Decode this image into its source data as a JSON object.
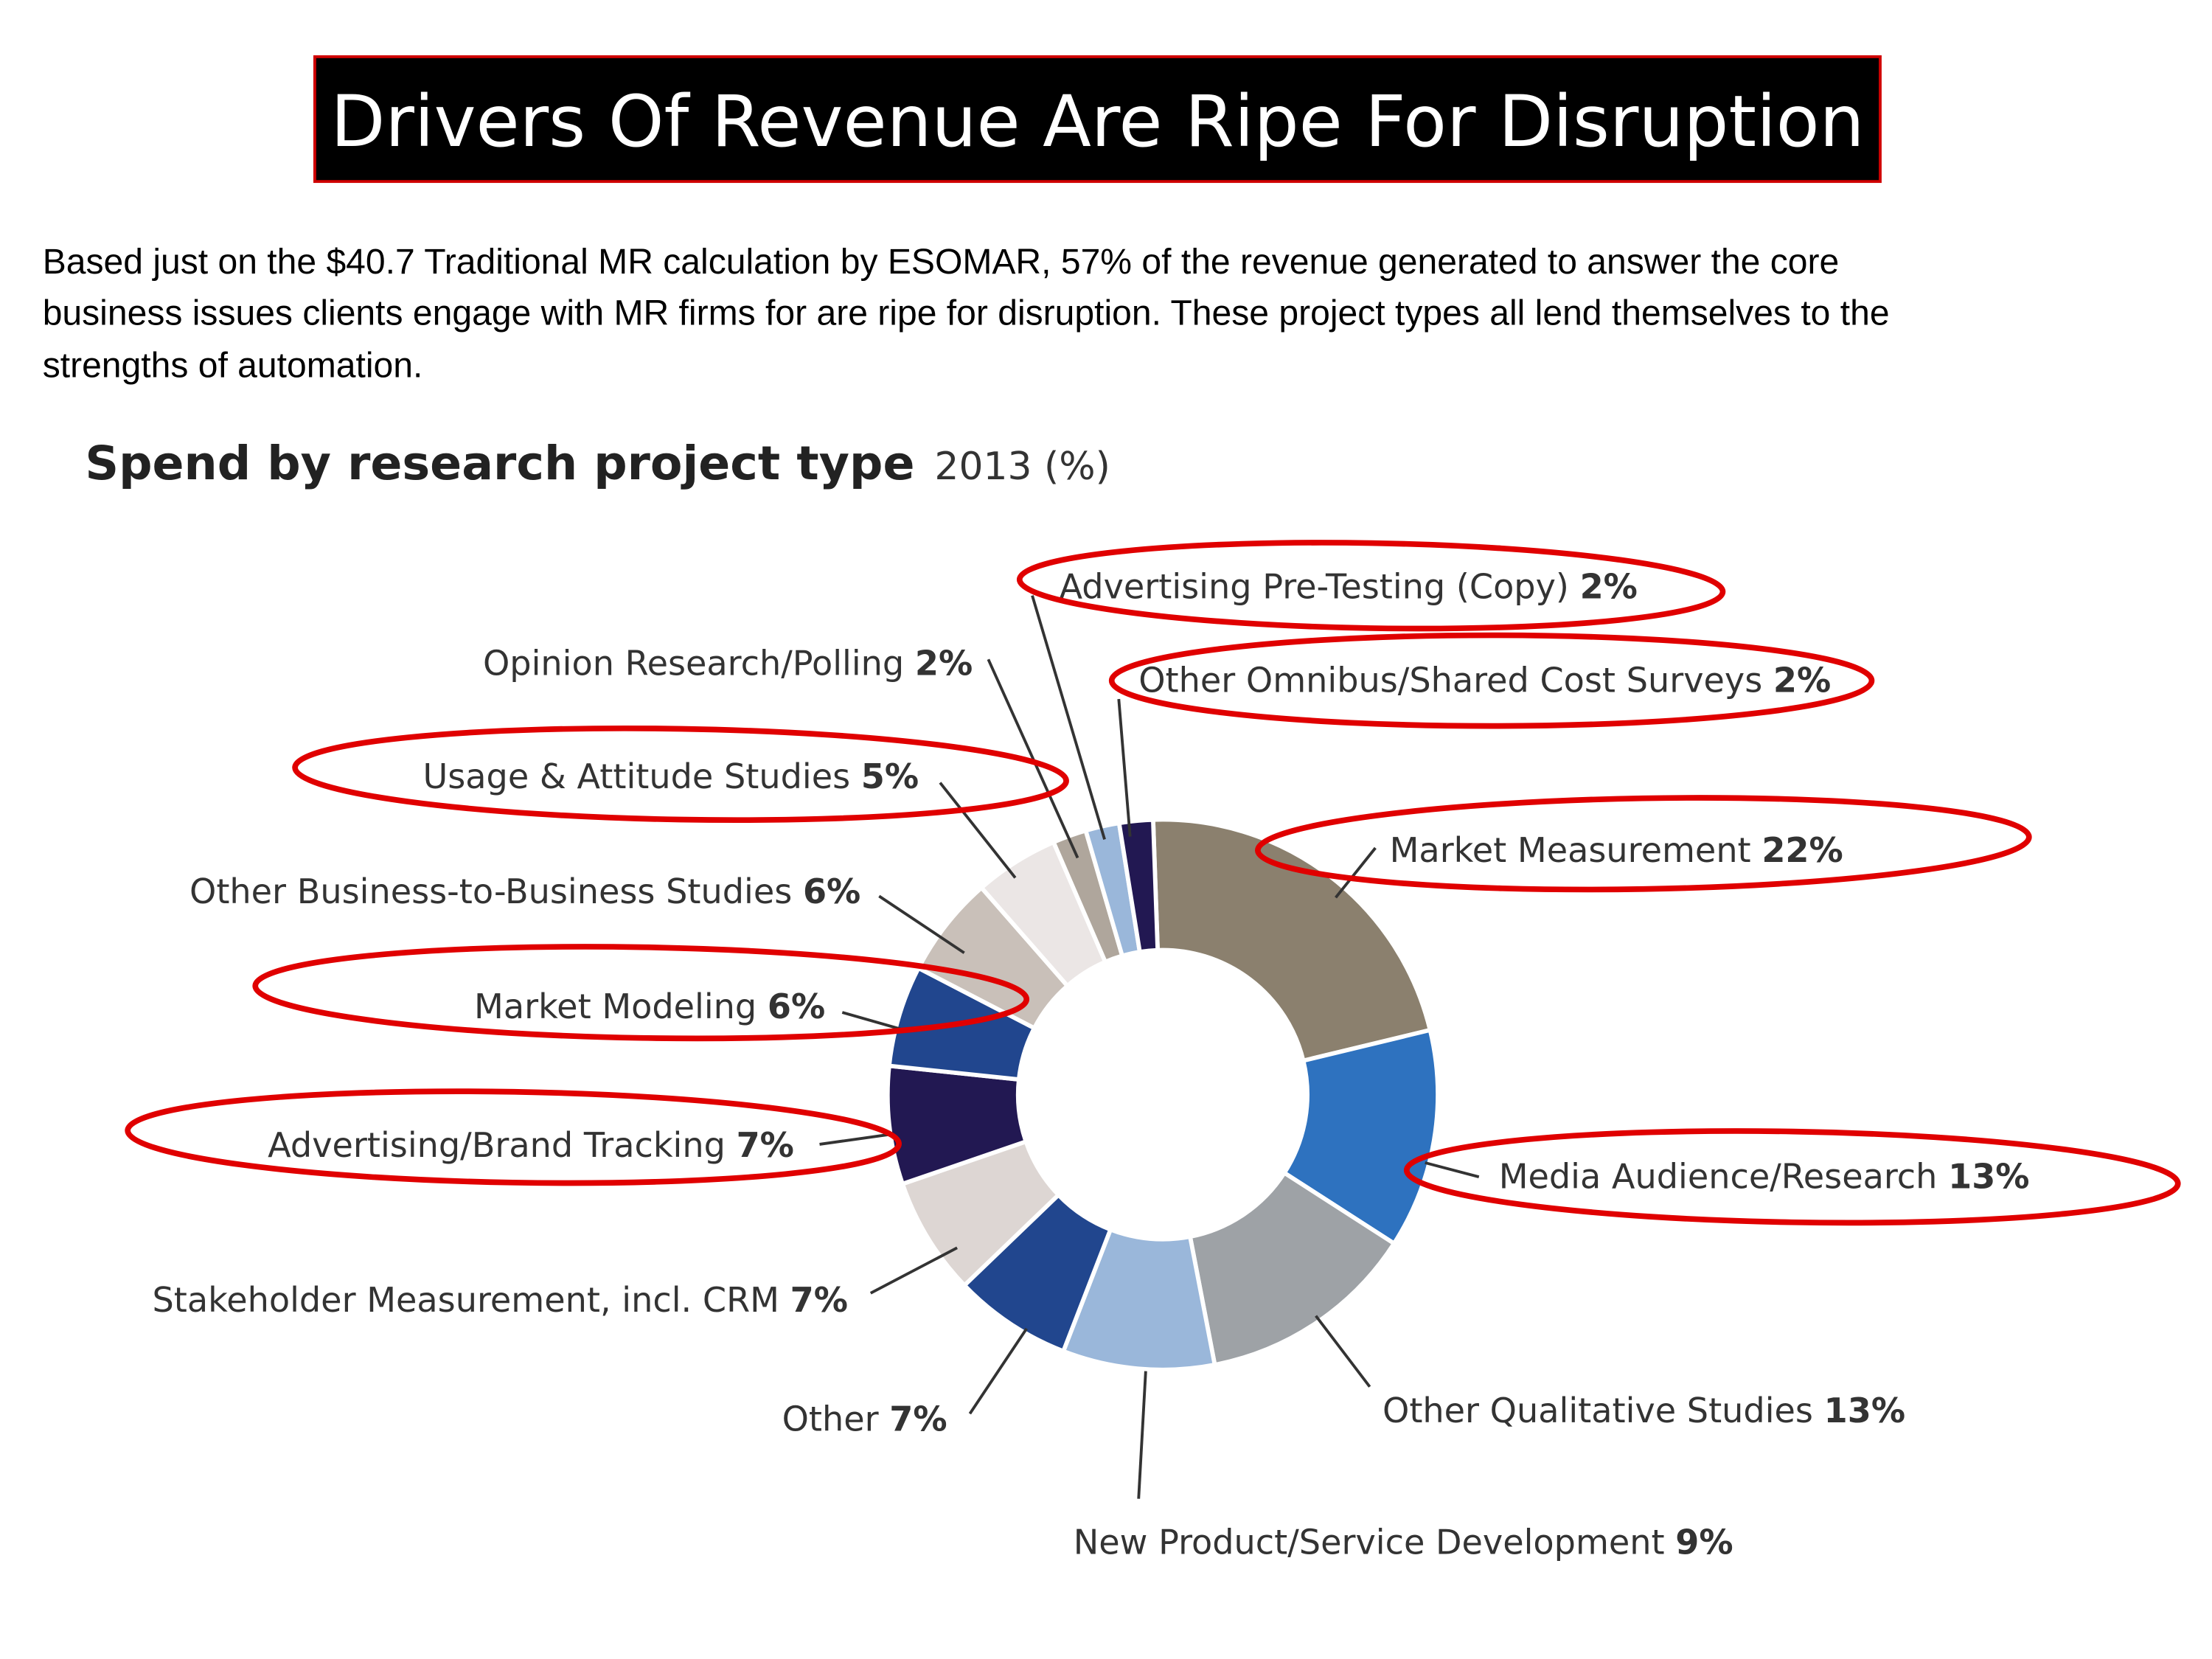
{
  "title": "Drivers Of Revenue Are Ripe For Disruption",
  "paragraph": [
    "Based just on the $40.7 Traditional MR calculation by ESOMAR, 57% of the revenue generated to answer the core",
    "business issues clients engage with MR firms for are ripe for disruption. These project types all lend themselves to the",
    "strengths of automation."
  ],
  "accent_color": "#e00000",
  "chart_data": {
    "type": "pie",
    "variant": "donut",
    "title": "Spend by research project type",
    "subtitle": "2013 (%)",
    "slices": [
      {
        "label": "Market Measurement",
        "value": 22,
        "pct": "22%",
        "color": "#8b806e",
        "highlighted": true
      },
      {
        "label": "Media Audience/Research",
        "value": 13,
        "pct": "13%",
        "color": "#2e72bf",
        "highlighted": true
      },
      {
        "label": "Other Qualitative Studies",
        "value": 13,
        "pct": "13%",
        "color": "#9ea2a6",
        "highlighted": false
      },
      {
        "label": "New Product/Service Development",
        "value": 9,
        "pct": "9%",
        "color": "#9ab7da",
        "highlighted": false
      },
      {
        "label": "Other",
        "value": 7,
        "pct": "7%",
        "color": "#21468e",
        "highlighted": false
      },
      {
        "label": "Stakeholder Measurement, incl. CRM",
        "value": 7,
        "pct": "7%",
        "color": "#ddd6d3",
        "highlighted": false
      },
      {
        "label": "Advertising/Brand Tracking",
        "value": 7,
        "pct": "7%",
        "color": "#221852",
        "highlighted": true
      },
      {
        "label": "Market Modeling",
        "value": 6,
        "pct": "6%",
        "color": "#21468e",
        "highlighted": true
      },
      {
        "label": "Other Business-to-Business Studies",
        "value": 6,
        "pct": "6%",
        "color": "#c9c0b9",
        "highlighted": false
      },
      {
        "label": "Usage & Attitude Studies",
        "value": 5,
        "pct": "5%",
        "color": "#ebe6e5",
        "highlighted": true
      },
      {
        "label": "Opinion Research/Polling",
        "value": 2,
        "pct": "2%",
        "color": "#afa69c",
        "highlighted": false
      },
      {
        "label": "Advertising Pre-Testing (Copy)",
        "value": 2,
        "pct": "2%",
        "color": "#9ab7da",
        "highlighted": true
      },
      {
        "label": "Other Omnibus/Shared Cost Surveys",
        "value": 2,
        "pct": "2%",
        "color": "#221852",
        "highlighted": true
      }
    ]
  }
}
